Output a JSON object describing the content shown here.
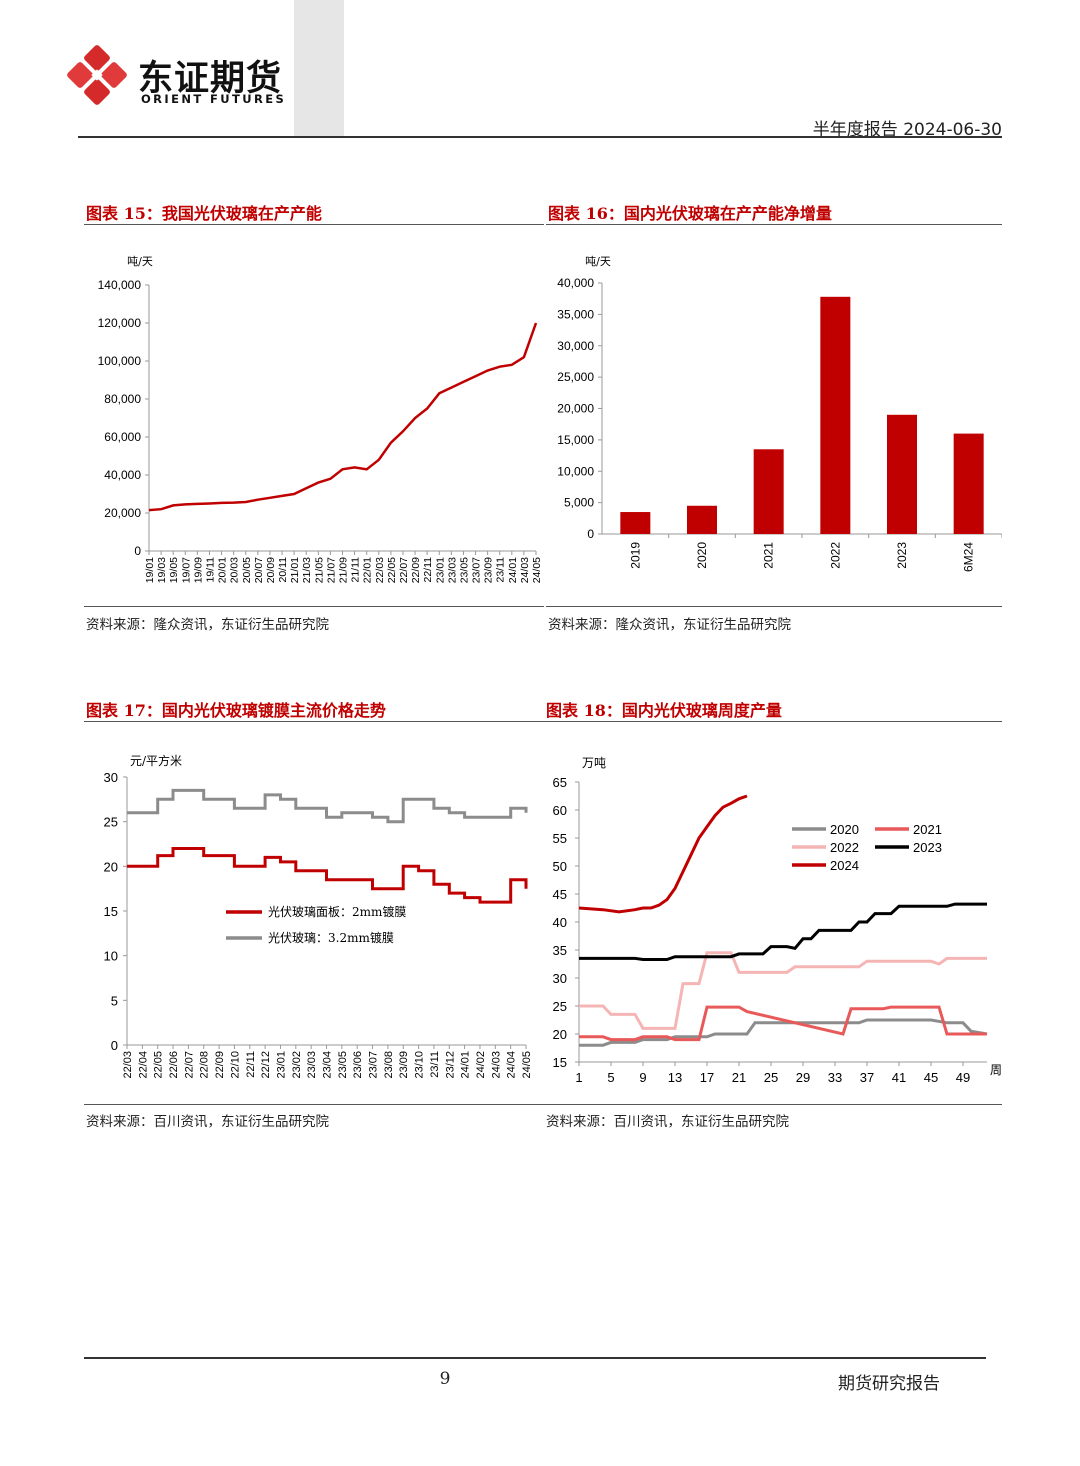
{
  "header": {
    "brand_name": "东证期货",
    "brand_en": "ORIENT FUTURES",
    "report_label": "半年度报告 2024-06-30"
  },
  "figures": [
    {
      "title": "图表 15：我国光伏玻璃在产产能",
      "source": "资料来源：隆众资讯，东证衍生品研究院"
    },
    {
      "title": "图表 16：国内光伏玻璃在产产能净增量",
      "source": "资料来源：隆众资讯，东证衍生品研究院"
    },
    {
      "title": "图表 17：国内光伏玻璃镀膜主流价格走势",
      "source": "资料来源：百川资讯，东证衍生品研究院"
    },
    {
      "title": "图表 18：国内光伏玻璃周度产量",
      "source": "资料来源：百川资讯，东证衍生品研究院"
    }
  ],
  "footer": {
    "page_number": "9",
    "label": "期货研究报告"
  },
  "colors": {
    "brand_red": "#c00000",
    "grey": "#8c8c8c",
    "pink": "#f5b5b5",
    "salmon": "#e8595a",
    "black": "#000000"
  },
  "chart_data": [
    {
      "type": "line",
      "title": "我国光伏玻璃在产产能",
      "ylabel": "吨/天",
      "ylim": [
        0,
        140000
      ],
      "yticks": [
        0,
        20000,
        40000,
        60000,
        80000,
        100000,
        120000,
        140000
      ],
      "ytick_labels": [
        "0",
        "20,000",
        "40,000",
        "60,000",
        "80,000",
        "100,000",
        "120,000",
        "140,000"
      ],
      "categories": [
        "19/01",
        "19/03",
        "19/05",
        "19/07",
        "19/09",
        "19/11",
        "20/01",
        "20/03",
        "20/05",
        "20/07",
        "20/09",
        "20/11",
        "21/01",
        "21/03",
        "21/05",
        "21/07",
        "21/09",
        "21/11",
        "22/01",
        "22/03",
        "22/05",
        "22/07",
        "22/09",
        "22/11",
        "23/01",
        "23/03",
        "23/05",
        "23/07",
        "23/09",
        "23/11",
        "24/01",
        "24/03",
        "24/05"
      ],
      "series": [
        {
          "name": "在产产能",
          "color": "#c00000",
          "values": [
            21500,
            22000,
            24000,
            24500,
            24800,
            25000,
            25300,
            25500,
            25800,
            27000,
            28000,
            29000,
            30000,
            33000,
            36000,
            38000,
            43000,
            44000,
            43000,
            48000,
            57000,
            63000,
            70000,
            75000,
            83000,
            86000,
            89000,
            92000,
            95000,
            97000,
            98000,
            102000,
            120000
          ]
        }
      ]
    },
    {
      "type": "bar",
      "title": "国内光伏玻璃在产产能净增量",
      "ylabel": "吨/天",
      "ylim": [
        0,
        40000
      ],
      "yticks": [
        0,
        5000,
        10000,
        15000,
        20000,
        25000,
        30000,
        35000,
        40000
      ],
      "ytick_labels": [
        "0",
        "5,000",
        "10,000",
        "15,000",
        "20,000",
        "25,000",
        "30,000",
        "35,000",
        "40,000"
      ],
      "categories": [
        "2019",
        "2020",
        "2021",
        "2022",
        "2023",
        "6M24"
      ],
      "values": [
        3500,
        4500,
        13500,
        37800,
        19000,
        16000
      ],
      "color": "#c00000"
    },
    {
      "type": "line",
      "title": "国内光伏玻璃镀膜主流价格走势",
      "ylabel": "元/平方米",
      "ylim": [
        0,
        30
      ],
      "yticks": [
        0,
        5,
        10,
        15,
        20,
        25,
        30
      ],
      "categories": [
        "22/03",
        "22/04",
        "22/05",
        "22/06",
        "22/07",
        "22/08",
        "22/09",
        "22/10",
        "22/11",
        "22/12",
        "23/01",
        "23/02",
        "23/03",
        "23/04",
        "23/05",
        "23/06",
        "23/07",
        "23/08",
        "23/09",
        "23/10",
        "23/11",
        "23/12",
        "24/01",
        "24/02",
        "24/03",
        "24/04",
        "24/05"
      ],
      "series": [
        {
          "name": "光伏玻璃面板：2mm镀膜",
          "color": "#c00000",
          "values": [
            20,
            20,
            21.2,
            22,
            22,
            21.2,
            21.2,
            20,
            20,
            21,
            20.5,
            19.5,
            19.5,
            18.5,
            18.5,
            18.5,
            17.5,
            17.5,
            20,
            19.5,
            18,
            17,
            16.5,
            16,
            16,
            18.5,
            17.5
          ]
        },
        {
          "name": "光伏玻璃：3.2mm镀膜",
          "color": "#8c8c8c",
          "values": [
            26,
            26,
            27.5,
            28.5,
            28.5,
            27.5,
            27.5,
            26.5,
            26.5,
            28,
            27.5,
            26.5,
            26.5,
            25.5,
            26,
            26,
            25.5,
            25,
            27.5,
            27.5,
            26.5,
            26,
            25.5,
            25.5,
            25.5,
            26.5,
            26
          ]
        }
      ]
    },
    {
      "type": "line",
      "title": "国内光伏玻璃周度产量",
      "ylabel": "万吨",
      "xlabel": "周",
      "ylim": [
        15,
        65
      ],
      "yticks": [
        15,
        20,
        25,
        30,
        35,
        40,
        45,
        50,
        55,
        60,
        65
      ],
      "xticks": [
        1,
        5,
        9,
        13,
        17,
        21,
        25,
        29,
        33,
        37,
        41,
        45,
        49
      ],
      "series": [
        {
          "name": "2020",
          "color": "#8c8c8c",
          "x": [
            1,
            4,
            5,
            8,
            9,
            12,
            13,
            17,
            18,
            22,
            23,
            36,
            37,
            45,
            47,
            49,
            50,
            52
          ],
          "values": [
            18,
            18,
            18.5,
            18.5,
            19,
            19,
            19.5,
            19.5,
            20,
            20,
            22,
            22,
            22.5,
            22.5,
            22,
            22,
            20.5,
            20
          ]
        },
        {
          "name": "2021",
          "color": "#e8595a",
          "x": [
            1,
            4,
            5,
            8,
            9,
            12,
            13,
            16,
            17,
            21,
            22,
            34,
            35,
            39,
            40,
            46,
            47,
            52
          ],
          "values": [
            19.5,
            19.5,
            19,
            19,
            19.5,
            19.5,
            19,
            19,
            24.8,
            24.8,
            24,
            20,
            24.5,
            24.5,
            24.8,
            24.8,
            20,
            20
          ]
        },
        {
          "name": "2022",
          "color": "#f5b5b5",
          "x": [
            1,
            4,
            5,
            8,
            9,
            13,
            14,
            16,
            17,
            20,
            21,
            27,
            28,
            36,
            37,
            45,
            46,
            47,
            52
          ],
          "values": [
            25,
            25,
            23.5,
            23.5,
            21,
            21,
            29,
            29,
            34.5,
            34.5,
            31,
            31,
            32,
            32,
            33,
            33,
            32.5,
            33.5,
            33.5
          ]
        },
        {
          "name": "2023",
          "color": "#000000",
          "x": [
            1,
            8,
            9,
            12,
            13,
            20,
            21,
            24,
            25,
            27,
            28,
            29,
            30,
            31,
            32,
            35,
            36,
            37,
            38,
            39,
            40,
            41,
            42,
            47,
            48,
            52
          ],
          "values": [
            33.5,
            33.5,
            33.3,
            33.3,
            33.8,
            33.8,
            34.3,
            34.3,
            35.6,
            35.6,
            35.3,
            37,
            37,
            38.5,
            38.5,
            38.5,
            40,
            40,
            41.5,
            41.5,
            41.5,
            42.8,
            42.8,
            42.8,
            43.2,
            43.2
          ]
        },
        {
          "name": "2024",
          "color": "#c00000",
          "x": [
            1,
            4,
            6,
            8,
            9,
            10,
            11,
            12,
            13,
            14,
            15,
            16,
            17,
            18,
            19,
            20,
            21,
            22
          ],
          "values": [
            42.5,
            42.2,
            41.8,
            42.2,
            42.5,
            42.5,
            43,
            44,
            46,
            49,
            52,
            55,
            57,
            59,
            60.5,
            61.2,
            62,
            62.5
          ]
        }
      ]
    }
  ]
}
